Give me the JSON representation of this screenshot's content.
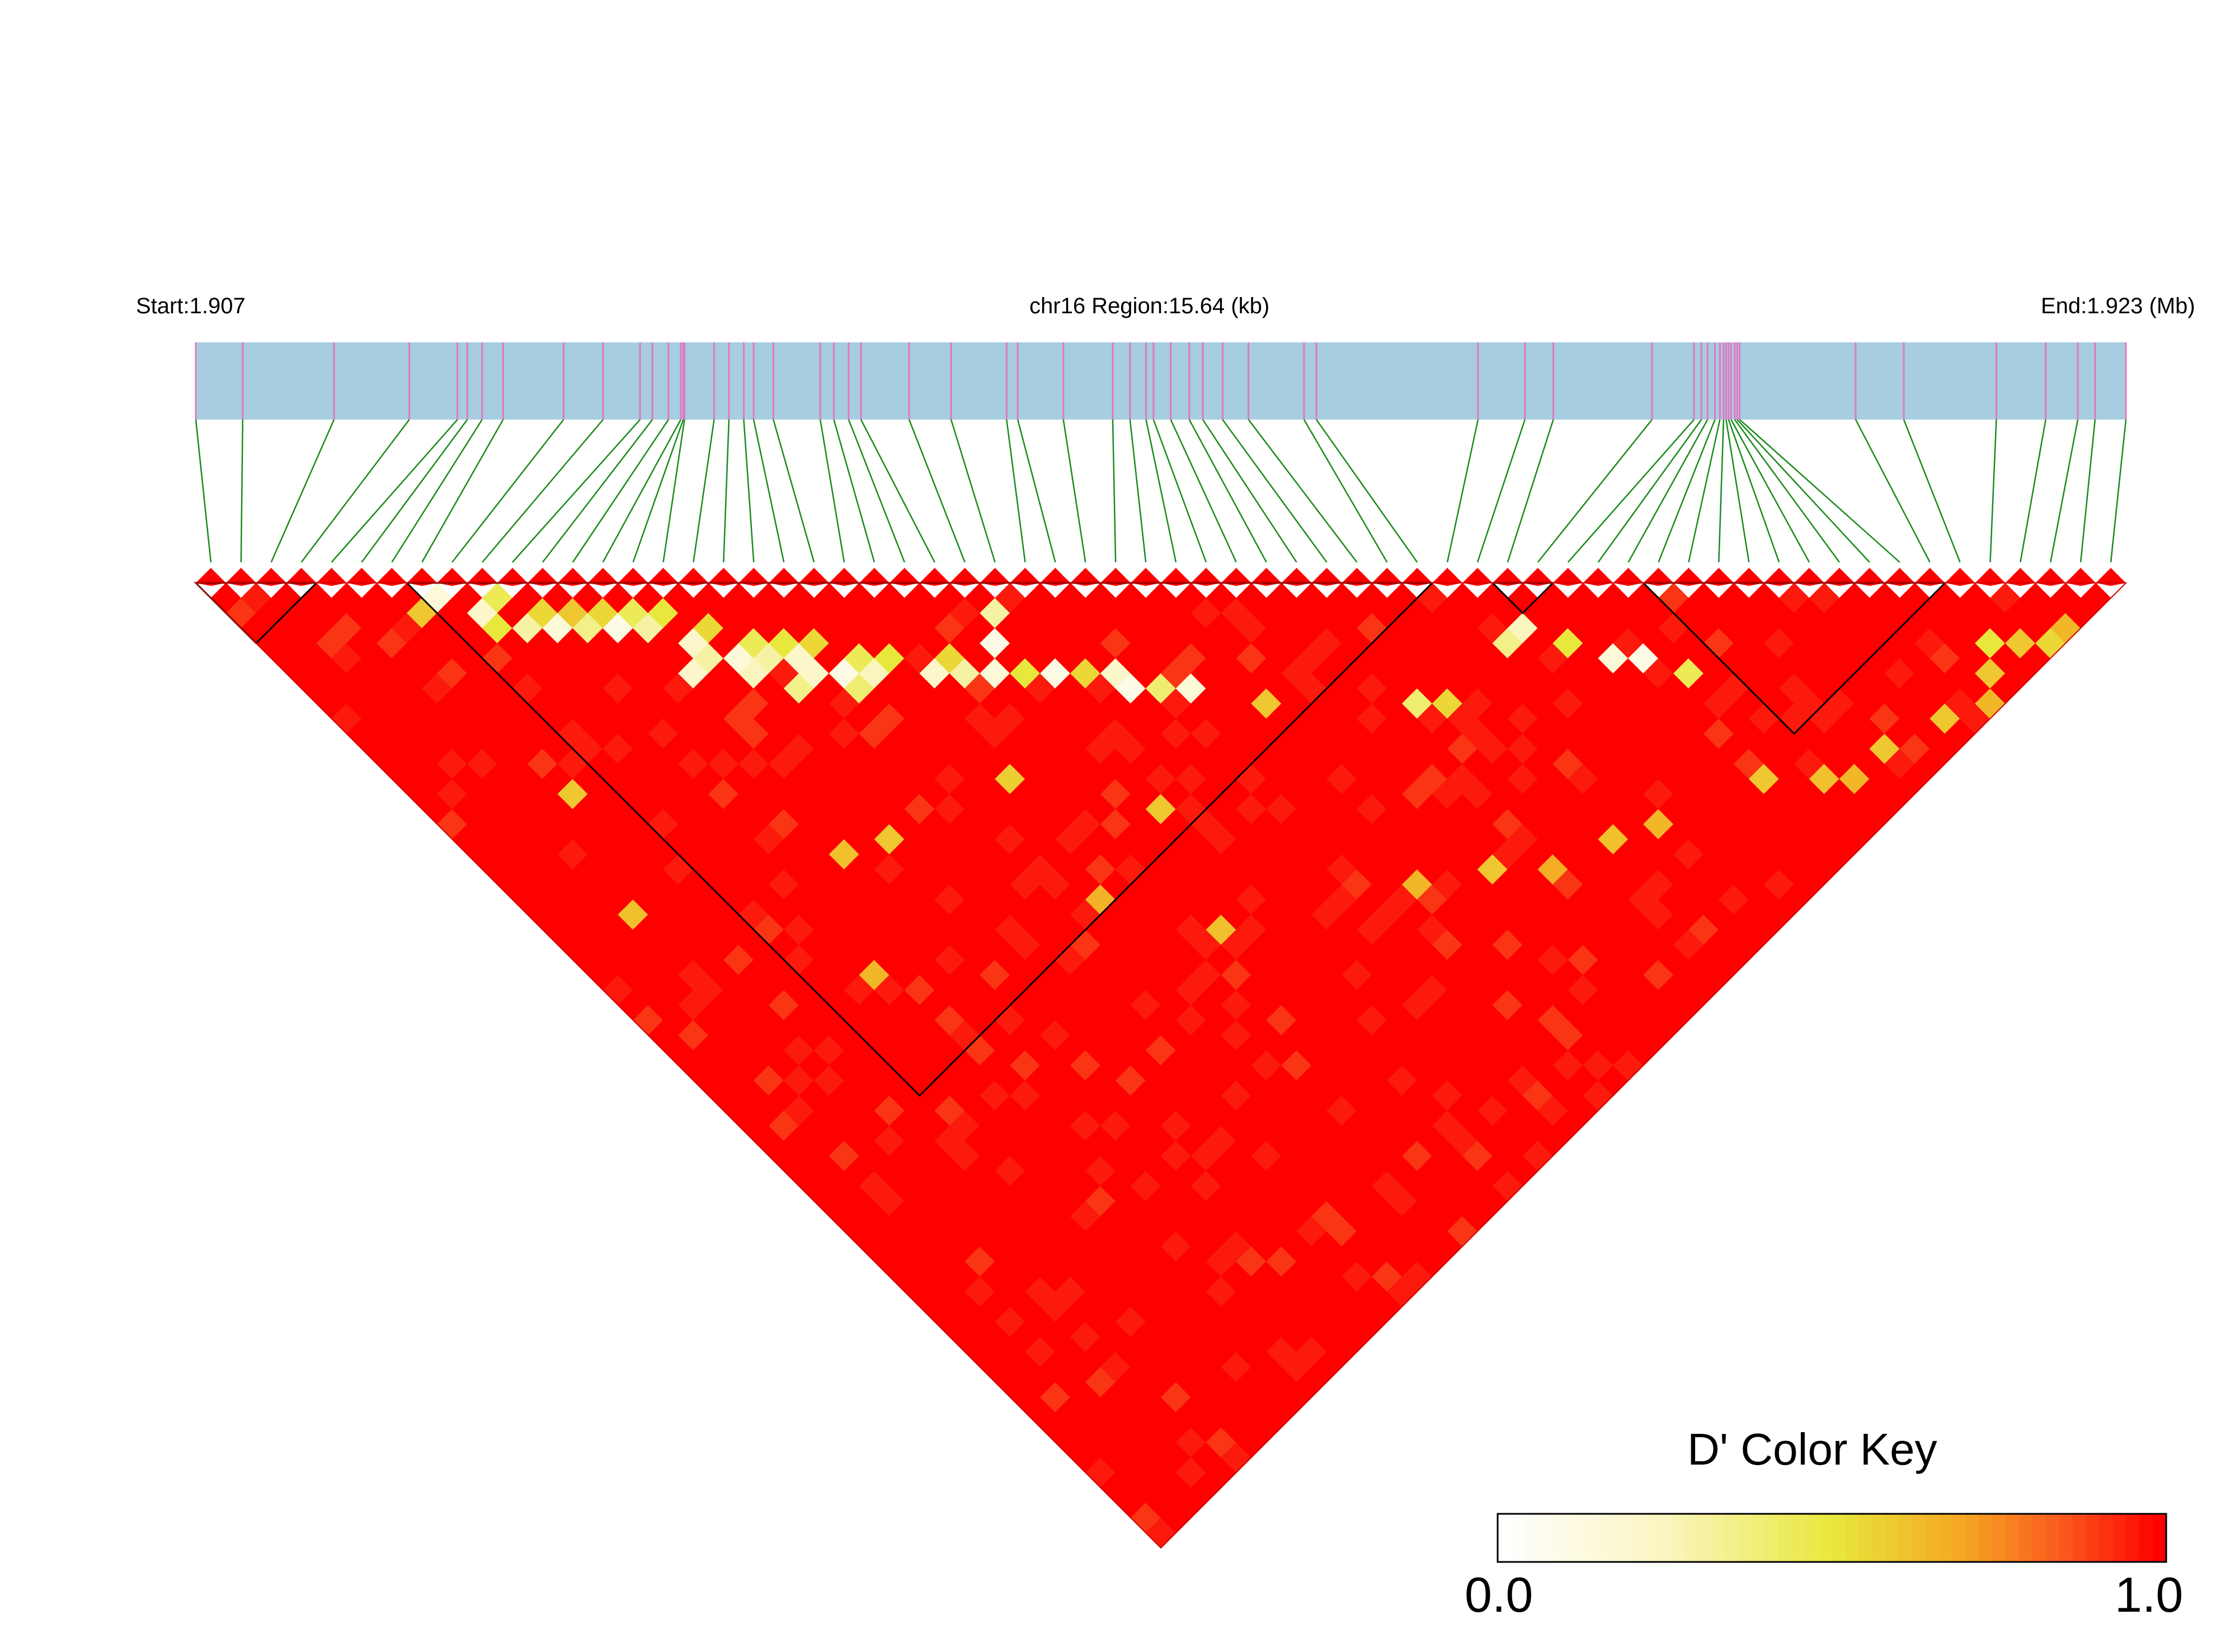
{
  "header": {
    "start_label": "Start:1.907",
    "region_label": "chr16 Region:15.64 (kb)",
    "end_label": "End:1.923 (Mb)"
  },
  "snp_track": {
    "bar_color": "#a6cde0",
    "snp_line_color": "#e377c2",
    "connector_color": "#1a8a1a",
    "snp_marker_color": "#ff0000",
    "snp_count": 64,
    "snp_positions_kb": [
      0.0,
      0.38,
      1.12,
      1.73,
      2.12,
      2.2,
      2.32,
      2.49,
      2.98,
      3.3,
      3.6,
      3.7,
      3.83,
      3.93,
      3.95,
      3.96,
      4.2,
      4.32,
      4.44,
      4.52,
      4.68,
      5.06,
      5.17,
      5.29,
      5.39,
      5.78,
      6.12,
      6.57,
      6.66,
      7.03,
      7.43,
      7.57,
      7.7,
      7.76,
      7.9,
      8.05,
      8.16,
      8.32,
      8.53,
      8.98,
      9.08,
      10.39,
      10.77,
      11.0,
      11.8,
      12.14,
      12.2,
      12.25,
      12.31,
      12.35,
      12.38,
      12.4,
      12.42,
      12.44,
      12.47,
      12.49,
      12.51,
      13.45,
      13.84,
      14.59,
      14.99,
      15.25,
      15.39,
      15.64
    ]
  },
  "ld_blocks": [
    [
      0,
      3
    ],
    [
      7,
      40
    ],
    [
      43,
      44
    ],
    [
      48,
      57
    ]
  ],
  "chart_data": {
    "type": "heatmap",
    "metric": "D'",
    "range": [
      0.0,
      1.0
    ],
    "colors": {
      "low": "#ffffff",
      "mid": "#e8e83c",
      "high": "#ff0000"
    },
    "low_cells": [
      [
        7,
        8,
        0.15
      ],
      [
        6,
        8,
        0.6
      ],
      [
        8,
        10,
        0.2
      ],
      [
        8,
        11,
        0.5
      ],
      [
        9,
        10,
        0.45
      ],
      [
        9,
        12,
        0.3
      ],
      [
        10,
        12,
        0.55
      ],
      [
        10,
        13,
        0.15
      ],
      [
        11,
        13,
        0.6
      ],
      [
        11,
        14,
        0.35
      ],
      [
        12,
        14,
        0.55
      ],
      [
        12,
        15,
        0.1
      ],
      [
        13,
        15,
        0.45
      ],
      [
        13,
        16,
        0.3
      ],
      [
        14,
        16,
        0.5
      ],
      [
        14,
        18,
        0.2
      ],
      [
        15,
        18,
        0.55
      ],
      [
        15,
        20,
        0.15
      ],
      [
        16,
        20,
        0.45
      ],
      [
        16,
        21,
        0.3
      ],
      [
        17,
        21,
        0.5
      ],
      [
        17,
        22,
        0.2
      ],
      [
        18,
        22,
        0.55
      ],
      [
        18,
        24,
        0.1
      ],
      [
        19,
        24,
        0.45
      ],
      [
        19,
        25,
        0.25
      ],
      [
        20,
        25,
        0.5
      ],
      [
        21,
        27,
        0.2
      ],
      [
        22,
        27,
        0.55
      ],
      [
        22,
        28,
        0.3
      ],
      [
        23,
        29,
        0.15
      ],
      [
        24,
        30,
        0.5
      ],
      [
        25,
        31,
        0.1
      ],
      [
        26,
        32,
        0.55
      ],
      [
        27,
        33,
        0.2
      ],
      [
        27,
        34,
        0.1
      ],
      [
        28,
        35,
        0.4
      ],
      [
        29,
        36,
        0.15
      ],
      [
        13,
        19,
        0.2
      ],
      [
        14,
        19,
        0.3
      ],
      [
        15,
        21,
        0.25
      ],
      [
        16,
        23,
        0.35
      ],
      [
        17,
        23,
        0.2
      ],
      [
        18,
        25,
        0.4
      ],
      [
        24,
        28,
        0.1
      ],
      [
        25,
        27,
        0.3
      ],
      [
        41,
        45,
        0.35
      ],
      [
        42,
        45,
        0.25
      ],
      [
        43,
        47,
        0.5
      ],
      [
        44,
        49,
        0.15
      ],
      [
        45,
        50,
        0.1
      ],
      [
        46,
        52,
        0.45
      ],
      [
        36,
        44,
        0.4
      ],
      [
        37,
        45,
        0.55
      ],
      [
        31,
        39,
        0.6
      ],
      [
        57,
        61,
        0.5
      ],
      [
        58,
        62,
        0.6
      ],
      [
        59,
        63,
        0.55
      ],
      [
        60,
        63,
        0.65
      ],
      [
        56,
        62,
        0.6
      ],
      [
        55,
        63,
        0.65
      ],
      [
        53,
        62,
        0.6
      ],
      [
        50,
        61,
        0.6
      ],
      [
        48,
        61,
        0.65
      ],
      [
        47,
        60,
        0.62
      ],
      [
        45,
        58,
        0.6
      ],
      [
        40,
        56,
        0.65
      ],
      [
        38,
        55,
        0.62
      ],
      [
        35,
        54,
        0.68
      ],
      [
        33,
        52,
        0.6
      ],
      [
        30,
        50,
        0.65
      ],
      [
        22,
        45,
        0.62
      ],
      [
        19,
        40,
        0.66
      ],
      [
        12,
        30,
        0.62
      ],
      [
        20,
        33,
        0.58
      ],
      [
        5,
        19,
        0.6
      ],
      [
        3,
        25,
        0.62
      ],
      [
        9,
        35,
        0.65
      ],
      [
        14,
        31,
        0.6
      ],
      [
        24,
        39,
        0.6
      ]
    ]
  },
  "color_key": {
    "title": "D' Color Key",
    "min_label": "0.0",
    "max_label": "1.0"
  }
}
